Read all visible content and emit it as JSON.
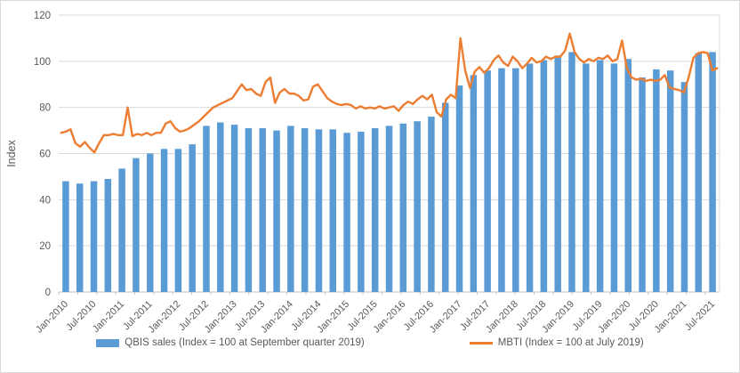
{
  "chart_data": {
    "type": "combo-bar-line",
    "title": "",
    "ylabel": "Index",
    "ylim": [
      0,
      120
    ],
    "yticks": [
      0,
      20,
      40,
      60,
      80,
      100,
      120
    ],
    "grid": true,
    "legend_position": "bottom",
    "x_axis": {
      "visible_tick_labels": [
        "Jan-2010",
        "Jul-2010",
        "Jan-2011",
        "Jul-2011",
        "Jan-2012",
        "Jul-2012",
        "Jan-2013",
        "Jul-2013",
        "Jan-2014",
        "Jul-2014",
        "Jan-2015",
        "Jul-2015",
        "Jan-2016",
        "Jul-2016",
        "Jan-2017",
        "Jul-2017",
        "Jan-2018",
        "Jul-2018",
        "Jan-2019",
        "Jul-2019",
        "Jan-2020",
        "Jul-2020",
        "Jan-2021",
        "Jul-2021"
      ],
      "label_every_n_bars": 2,
      "label_rotation_deg": -45
    },
    "bar_series": {
      "name": "QBIS sales",
      "legend_label": "QBIS sales (Index = 100 at September quarter 2019)",
      "color": "#5B9BD5",
      "frequency": "quarterly",
      "first_quarter": "Jan-2010",
      "last_quarter": "Jul-2021",
      "values": [
        48,
        47,
        48,
        49,
        53.5,
        58,
        60,
        62,
        62,
        64,
        72,
        73.5,
        72.5,
        71,
        71,
        70,
        72,
        71,
        70.5,
        70.5,
        69,
        69.5,
        71,
        72,
        73,
        74,
        76,
        82,
        89.5,
        94,
        96,
        97,
        97,
        99,
        100.5,
        102.5,
        104,
        99,
        100.5,
        99,
        101,
        93,
        96.5,
        96,
        91,
        103.5,
        104
      ]
    },
    "line_series": {
      "name": "MBTI",
      "legend_label": "MBTI (Index = 100 at July 2019)",
      "color": "#ED7D31",
      "frequency": "monthly",
      "first_month": "Jan-2010",
      "last_month": "Jul-2021",
      "values": [
        69,
        69.5,
        70.5,
        64.5,
        63,
        65,
        62.5,
        60.5,
        64.5,
        68,
        68,
        68.5,
        68,
        68,
        80,
        67.5,
        68.5,
        68,
        69,
        68,
        69,
        69,
        73,
        74,
        71,
        69.5,
        70,
        71,
        72.5,
        74,
        76,
        78,
        80,
        81,
        82,
        83,
        84,
        87,
        90,
        87.5,
        88,
        86,
        85,
        91,
        93,
        82,
        86.5,
        88,
        86,
        86,
        85,
        83,
        83.5,
        89,
        90,
        87,
        84,
        82.5,
        81.5,
        81,
        81.5,
        81,
        79.5,
        80.5,
        79.5,
        80,
        79.5,
        80.5,
        79.5,
        80,
        80.5,
        78.5,
        81,
        82.5,
        81.5,
        83.5,
        85,
        83.5,
        85.5,
        78,
        76,
        83.5,
        85.5,
        84,
        110,
        96,
        88.5,
        95.5,
        97.5,
        95,
        97,
        100.5,
        102.5,
        99.5,
        98,
        102,
        100,
        97,
        99,
        101.5,
        99.5,
        100,
        102,
        101,
        102,
        102,
        104.5,
        112,
        104,
        101,
        99.5,
        101,
        100,
        101.5,
        101,
        102.5,
        100,
        101,
        109,
        97,
        93,
        92,
        92.5,
        91.5,
        92,
        91.5,
        92,
        94,
        88.5,
        88,
        87.5,
        86.5,
        93,
        101.5,
        103.5,
        104,
        103.5,
        96,
        97
      ]
    }
  },
  "style": {
    "grid_color": "#d9d9d9",
    "axis_color": "#bfbfbf",
    "text_color": "#595959",
    "background": "#ffffff"
  }
}
